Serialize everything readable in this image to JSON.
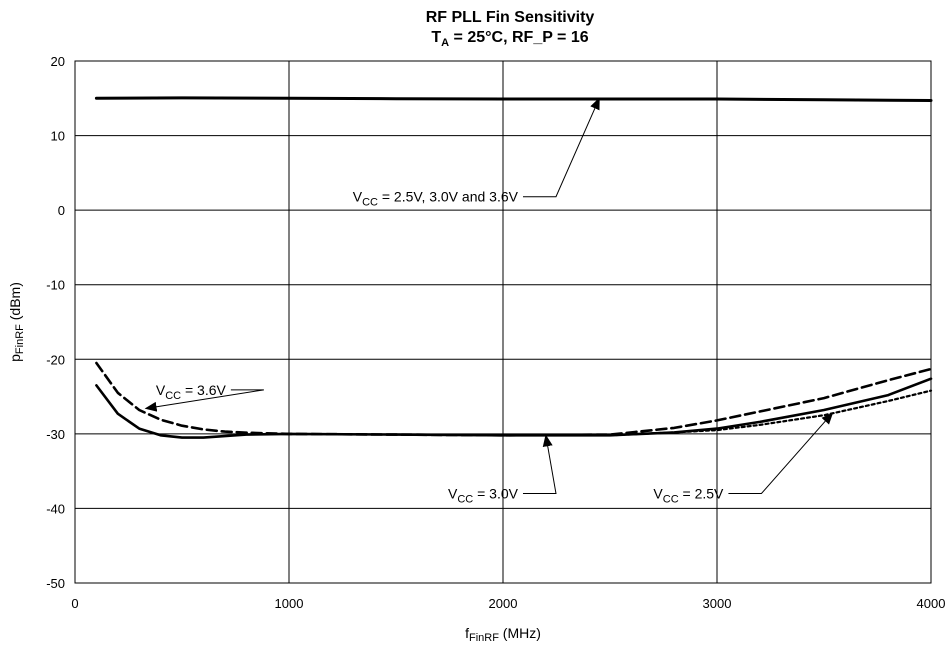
{
  "chart_data": {
    "type": "line",
    "title": {
      "line1": "RF PLL Fin Sensitivity",
      "line2_main": "T",
      "line2_sub": "A",
      "line2_rest": " = 25°C, RF_P = 16"
    },
    "xlabel": {
      "main": "f",
      "sub": "FinRF",
      "rest": " (MHz)"
    },
    "ylabel": {
      "main": "p",
      "sub": "FinRF",
      "rest": " (dBm)"
    },
    "xlim": [
      0,
      4000
    ],
    "ylim": [
      -50,
      20
    ],
    "x_ticks": [
      0,
      1000,
      2000,
      3000,
      4000
    ],
    "y_ticks": [
      20,
      10,
      0,
      -10,
      -20,
      -30,
      -40,
      -50
    ],
    "grid": true,
    "series": [
      {
        "name": "VCC = 2.5V, 3.0V and 3.6V",
        "style": "solid-thick",
        "points": [
          [
            100,
            15.0
          ],
          [
            500,
            15.05
          ],
          [
            1000,
            15.0
          ],
          [
            1500,
            14.95
          ],
          [
            2000,
            14.9
          ],
          [
            2500,
            14.9
          ],
          [
            3000,
            14.9
          ],
          [
            3500,
            14.8
          ],
          [
            4000,
            14.7
          ]
        ]
      },
      {
        "name": "VCC = 3.6V",
        "style": "dashed",
        "points": [
          [
            100,
            -20.5
          ],
          [
            200,
            -24.5
          ],
          [
            300,
            -26.8
          ],
          [
            400,
            -28.1
          ],
          [
            500,
            -28.9
          ],
          [
            600,
            -29.4
          ],
          [
            700,
            -29.7
          ],
          [
            800,
            -29.85
          ],
          [
            1000,
            -30.0
          ],
          [
            1500,
            -30.1
          ],
          [
            2000,
            -30.2
          ],
          [
            2500,
            -30.1
          ],
          [
            2800,
            -29.2
          ],
          [
            3000,
            -28.2
          ],
          [
            3200,
            -27.0
          ],
          [
            3500,
            -25.2
          ],
          [
            3800,
            -22.8
          ],
          [
            4000,
            -21.3
          ]
        ]
      },
      {
        "name": "VCC = 3.0V",
        "style": "solid",
        "points": [
          [
            100,
            -23.5
          ],
          [
            200,
            -27.3
          ],
          [
            300,
            -29.3
          ],
          [
            400,
            -30.2
          ],
          [
            500,
            -30.5
          ],
          [
            600,
            -30.5
          ],
          [
            700,
            -30.3
          ],
          [
            800,
            -30.1
          ],
          [
            1000,
            -30.0
          ],
          [
            1500,
            -30.1
          ],
          [
            2000,
            -30.2
          ],
          [
            2500,
            -30.2
          ],
          [
            2800,
            -29.8
          ],
          [
            3000,
            -29.3
          ],
          [
            3200,
            -28.4
          ],
          [
            3500,
            -26.8
          ],
          [
            3800,
            -24.8
          ],
          [
            4000,
            -22.6
          ]
        ]
      },
      {
        "name": "VCC = 2.5V",
        "style": "dotted",
        "points": [
          [
            2500,
            -30.2
          ],
          [
            2800,
            -29.8
          ],
          [
            3000,
            -29.5
          ],
          [
            3200,
            -28.8
          ],
          [
            3500,
            -27.5
          ],
          [
            3800,
            -25.6
          ],
          [
            4000,
            -24.2
          ]
        ]
      }
    ],
    "annotations": [
      {
        "id": "all",
        "main": "V",
        "sub": "CC",
        "rest": " = 2.5V, 3.0V and 3.6V",
        "label_at": [
          2070,
          1.8
        ],
        "target": [
          2450,
          15.0
        ]
      },
      {
        "id": "v36",
        "main": "V",
        "sub": "CC",
        "rest": " = 3.6V",
        "label_at": [
          705,
          -24.1
        ],
        "target": [
          330,
          -26.6
        ]
      },
      {
        "id": "v30",
        "main": "V",
        "sub": "CC",
        "rest": " = 3.0V",
        "label_at": [
          2070,
          -38.0
        ],
        "target": [
          2200,
          -30.2
        ]
      },
      {
        "id": "v25",
        "main": "V",
        "sub": "CC",
        "rest": " = 2.5V",
        "label_at": [
          3030,
          -38.0
        ],
        "target": [
          3540,
          -27.2
        ]
      }
    ]
  }
}
